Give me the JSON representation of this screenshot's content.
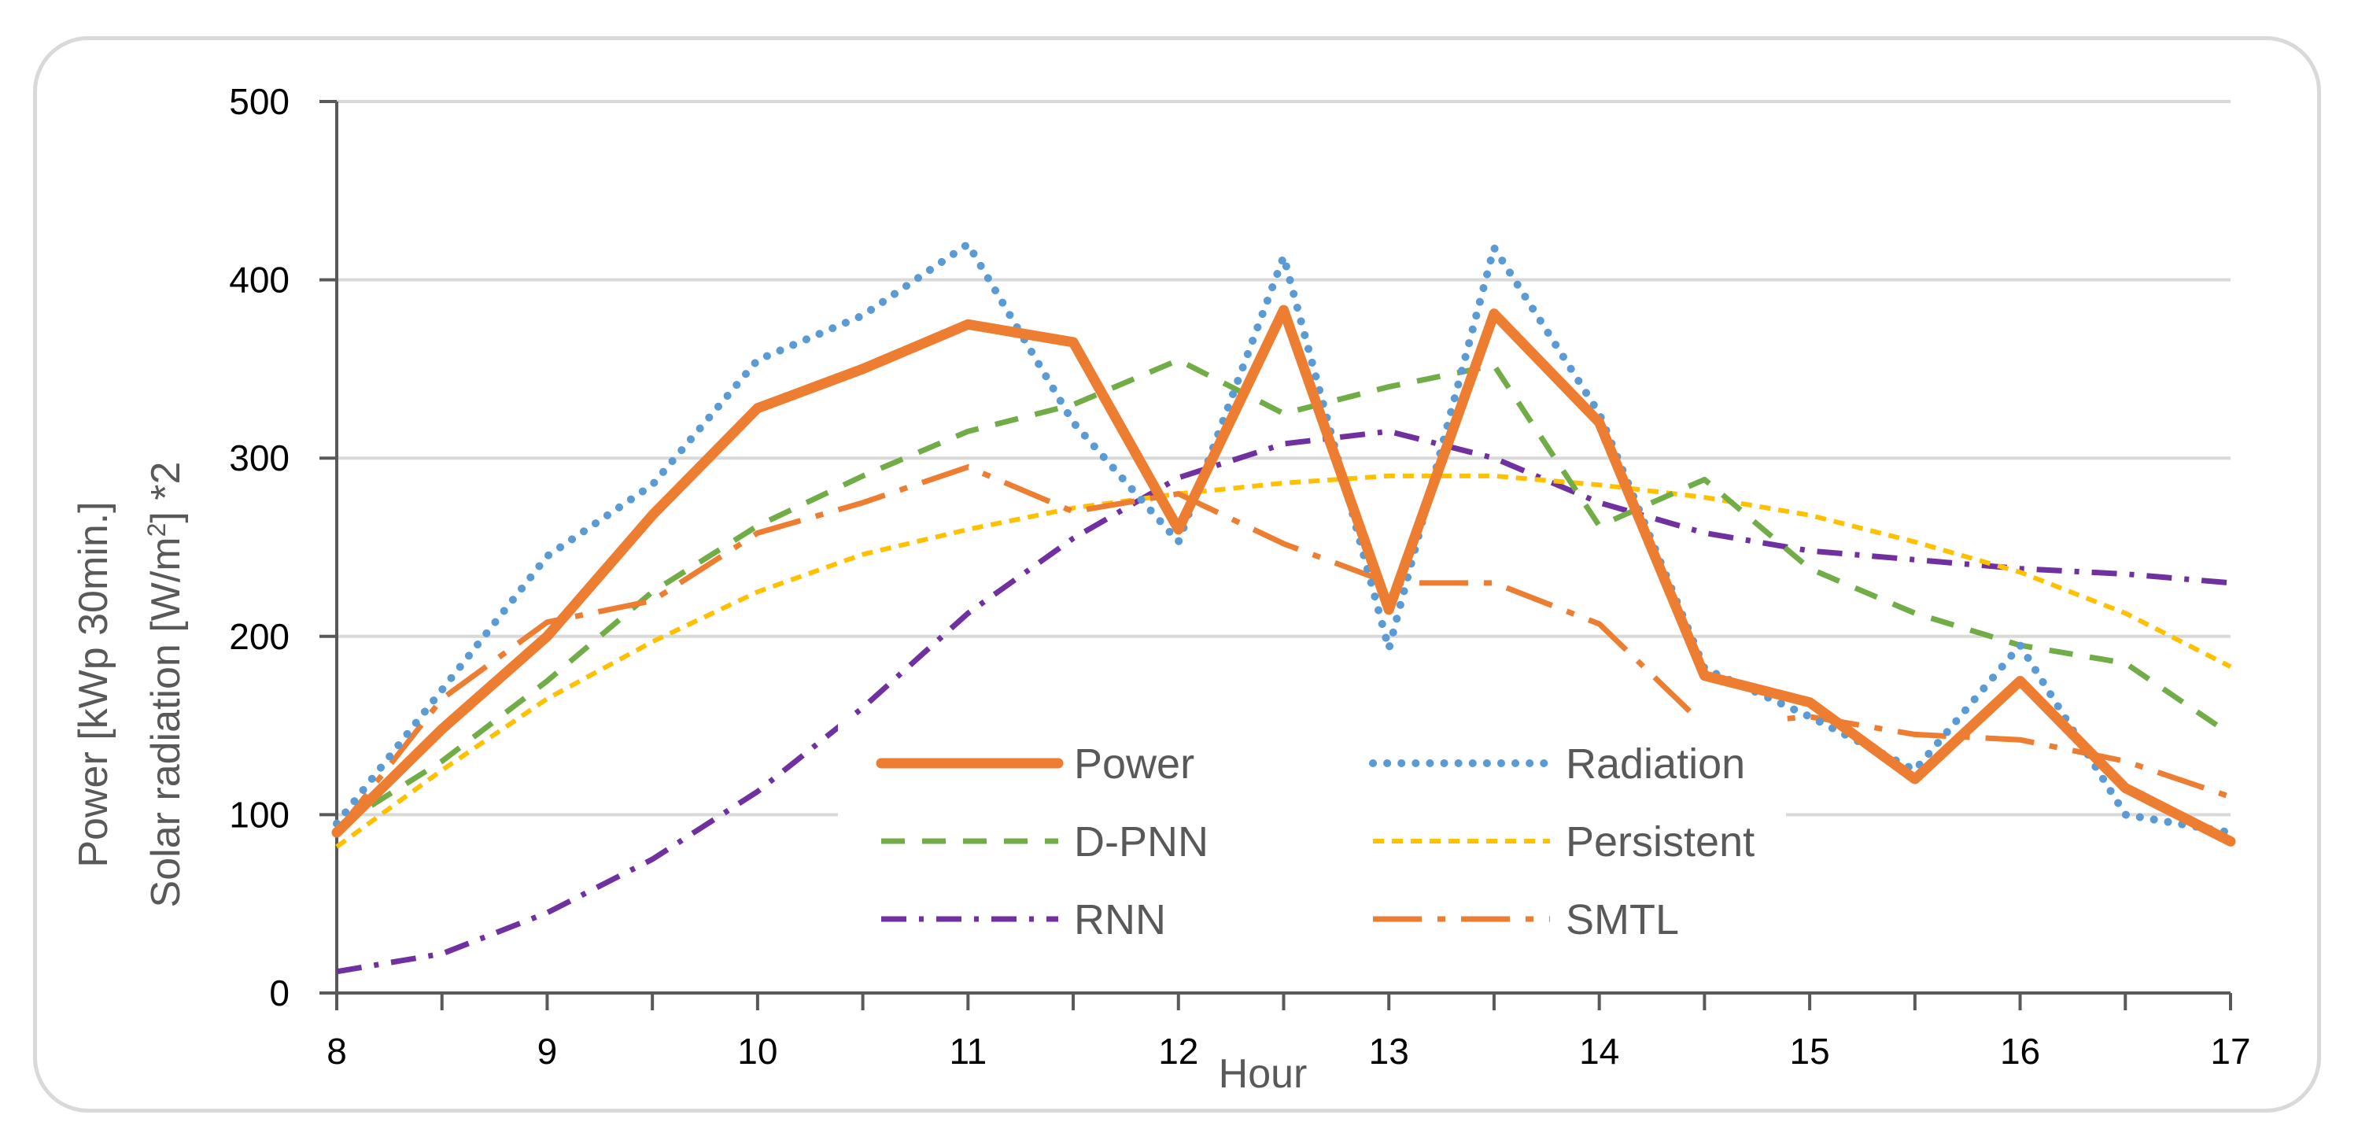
{
  "chart_data": {
    "type": "line",
    "title": "",
    "xlabel": "Hour",
    "ylabel_line1": "Power [kWp 30min.]",
    "ylabel_line2_prefix": "Solar radiation [W/m",
    "ylabel_line2_sup": "2",
    "ylabel_line2_suffix": "] *2",
    "xlim": [
      8,
      17
    ],
    "ylim": [
      0,
      500
    ],
    "x_ticks": [
      8,
      9,
      10,
      11,
      12,
      13,
      14,
      15,
      16,
      17
    ],
    "y_ticks": [
      0,
      100,
      200,
      300,
      400,
      500
    ],
    "grid": "horizontal",
    "legend_position": "bottom-center",
    "x": [
      8,
      8.5,
      9,
      9.5,
      10,
      10.5,
      11,
      11.5,
      12,
      12.5,
      13,
      13.5,
      14,
      14.5,
      15,
      15.5,
      16,
      16.5,
      17
    ],
    "series": [
      {
        "name": "Power",
        "color": "#ED7D31",
        "style": "solid",
        "values": [
          90,
          148,
          200,
          268,
          328,
          350,
          375,
          365,
          260,
          383,
          215,
          381,
          320,
          178,
          163,
          120,
          175,
          115,
          85
        ]
      },
      {
        "name": "Radiation",
        "color": "#5B9BD5",
        "style": "dotted",
        "values": [
          95,
          170,
          245,
          285,
          355,
          380,
          420,
          320,
          253,
          413,
          193,
          418,
          325,
          182,
          155,
          125,
          195,
          100,
          90
        ]
      },
      {
        "name": "D-PNN",
        "color": "#70AD47",
        "style": "dashed",
        "values": [
          93,
          130,
          175,
          225,
          262,
          290,
          315,
          330,
          355,
          325,
          340,
          352,
          262,
          288,
          238,
          213,
          195,
          185,
          145
        ]
      },
      {
        "name": "Persistent",
        "color": "#FFC000",
        "style": "shortdash",
        "values": [
          82,
          125,
          165,
          197,
          225,
          246,
          260,
          272,
          280,
          286,
          290,
          290,
          285,
          278,
          268,
          253,
          236,
          213,
          183
        ]
      },
      {
        "name": "RNN",
        "color": "#7030A0",
        "style": "dashdot",
        "values": [
          12,
          22,
          45,
          75,
          113,
          160,
          213,
          255,
          289,
          308,
          315,
          300,
          275,
          258,
          248,
          243,
          238,
          235,
          230
        ]
      },
      {
        "name": "SMTL",
        "color": "#ED7D31",
        "style": "longdashdot",
        "values": [
          90,
          165,
          208,
          220,
          258,
          275,
          295,
          270,
          280,
          252,
          230,
          230,
          207,
          150,
          155,
          145,
          142,
          130,
          110
        ]
      }
    ]
  }
}
